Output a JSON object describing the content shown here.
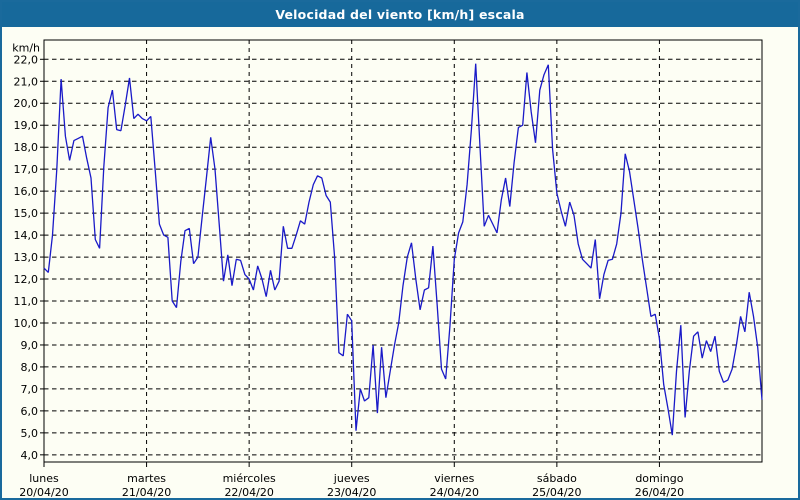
{
  "window": {
    "title": "Velocidad del viento [km/h] escala"
  },
  "colors": {
    "titlebar": "#17699b",
    "window_border": "#1a6a9c",
    "background": "#fdfef4",
    "line": "#1a1ac8",
    "grid": "#000000",
    "text": "#000000"
  },
  "chart_data": {
    "type": "line",
    "title": "Velocidad del viento [km/h] escala",
    "ylabel": "km/h",
    "xlabel": "",
    "ylim": [
      4.0,
      22.0
    ],
    "y_step": 1.0,
    "grid": "dashed, horizontal every 1 km/h and vertical at day boundaries",
    "legend_position": "none",
    "y_tick_labels": [
      "22,0",
      "21,0",
      "20,0",
      "19,0",
      "18,0",
      "17,0",
      "16,0",
      "15,0",
      "14,0",
      "13,0",
      "12,0",
      "11,0",
      "10,0",
      "9,0",
      "8,0",
      "7,0",
      "6,0",
      "5,0",
      "4,0"
    ],
    "y_tick_values": [
      22,
      21,
      20,
      19,
      18,
      17,
      16,
      15,
      14,
      13,
      12,
      11,
      10,
      9,
      8,
      7,
      6,
      5,
      4
    ],
    "x_axis_days": [
      {
        "name": "lunes",
        "date": "20/04/20"
      },
      {
        "name": "martes",
        "date": "21/04/20"
      },
      {
        "name": "miércoles",
        "date": "22/04/20"
      },
      {
        "name": "jueves",
        "date": "23/04/20"
      },
      {
        "name": "viernes",
        "date": "24/04/20"
      },
      {
        "name": "sábado",
        "date": "25/04/20"
      },
      {
        "name": "domingo",
        "date": "26/04/20"
      }
    ],
    "sampling": "hourly, 24 points per day, 7 days",
    "series": [
      {
        "name": "Velocidad del viento",
        "unit": "km/h",
        "values": [
          12.5,
          12.3,
          14.0,
          17.0,
          21.1,
          18.5,
          17.4,
          18.3,
          18.4,
          18.5,
          17.5,
          16.6,
          13.8,
          13.4,
          17.1,
          19.8,
          20.6,
          18.8,
          18.75,
          19.9,
          21.15,
          19.3,
          19.5,
          19.3,
          19.2,
          19.4,
          17.0,
          14.5,
          14.0,
          13.9,
          11.0,
          10.7,
          12.8,
          14.2,
          14.3,
          12.7,
          13.0,
          14.8,
          16.6,
          18.45,
          17.0,
          14.5,
          11.9,
          13.1,
          11.7,
          12.9,
          12.85,
          12.2,
          12.0,
          11.5,
          12.6,
          12.0,
          11.2,
          12.4,
          11.5,
          11.9,
          14.4,
          13.4,
          13.4,
          14.0,
          14.65,
          14.5,
          15.5,
          16.3,
          16.7,
          16.6,
          15.8,
          15.5,
          13.0,
          8.65,
          8.5,
          10.4,
          10.1,
          5.1,
          7.0,
          6.45,
          6.6,
          9.0,
          5.9,
          8.9,
          6.6,
          7.8,
          9.0,
          10.0,
          11.7,
          13.0,
          13.65,
          12.0,
          10.6,
          11.5,
          11.6,
          13.5,
          10.8,
          7.9,
          7.45,
          9.9,
          12.9,
          14.1,
          14.6,
          16.3,
          18.8,
          21.8,
          18.1,
          14.4,
          14.9,
          14.5,
          14.1,
          15.6,
          16.6,
          15.3,
          17.3,
          18.9,
          19.0,
          21.4,
          19.6,
          18.2,
          20.6,
          21.3,
          21.75,
          17.9,
          15.9,
          15.1,
          14.4,
          15.5,
          14.9,
          13.6,
          12.9,
          12.7,
          12.5,
          13.8,
          11.1,
          12.2,
          12.85,
          12.9,
          13.6,
          15.0,
          17.7,
          16.9,
          15.6,
          14.3,
          12.9,
          11.6,
          10.3,
          10.4,
          9.3,
          7.2,
          6.1,
          4.9,
          7.8,
          9.9,
          5.7,
          7.8,
          9.4,
          9.6,
          8.4,
          9.2,
          8.7,
          9.4,
          7.8,
          7.3,
          7.4,
          7.9,
          9.0,
          10.3,
          9.6,
          11.4,
          10.3,
          8.9,
          6.5
        ]
      }
    ]
  }
}
